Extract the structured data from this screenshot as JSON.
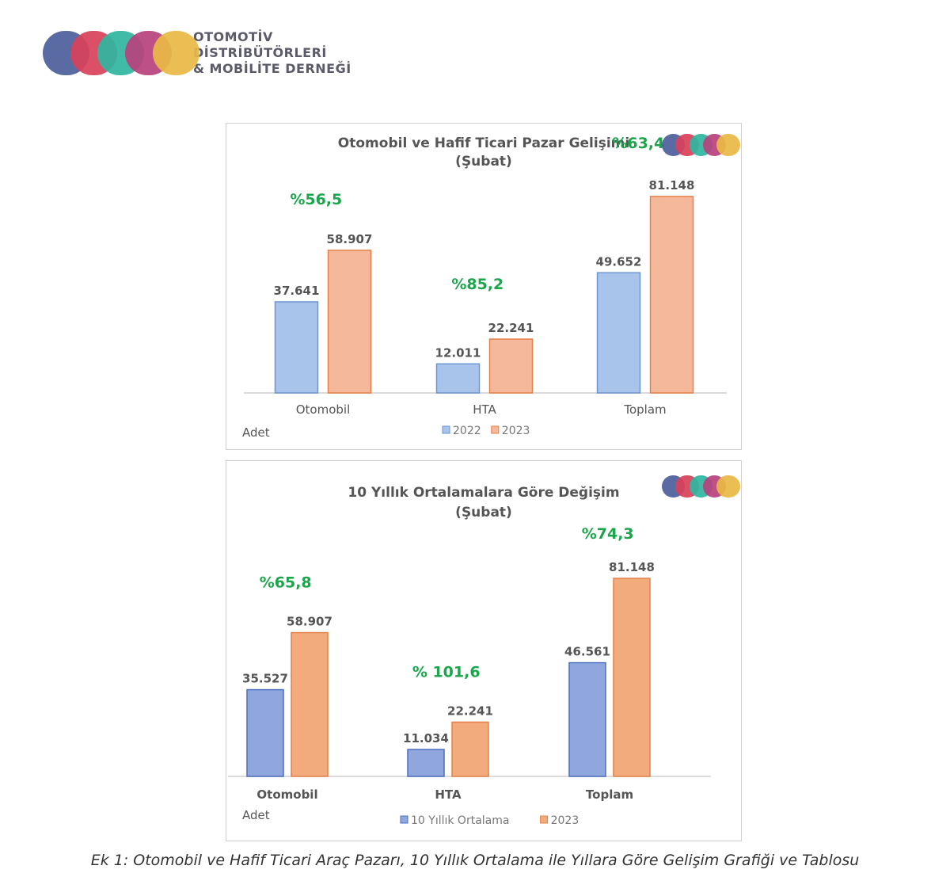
{
  "header": {
    "logo_letters": "ODMD",
    "org_name_lines": [
      "OTOMOTİV",
      "DİSTRİBÜTÖRLERİ",
      "& MOBİLİTE DERNEĞİ"
    ]
  },
  "colors": {
    "logo": [
      "#4c5e9c",
      "#d9415a",
      "#2fb5a1",
      "#b7417d",
      "#e9b845"
    ],
    "bar_2022": "#a8c4ea",
    "bar_2023_light": "#f5b89a",
    "bar_avg": "#8fa7dd",
    "bar_2023": "#f2ab7d",
    "bar_stroke_orange": "#e4804a",
    "bar_stroke_blue": "#4b6fbf",
    "pct_green": "#1aa64a"
  },
  "chart_data": [
    {
      "type": "bar",
      "title": "Otomobil ve Hafif Ticari Pazar Gelişimi",
      "subtitle": "(Şubat)",
      "unit_label": "Adet",
      "categories": [
        "Otomobil",
        "HTA",
        "Toplam"
      ],
      "series": [
        {
          "name": "2022",
          "values": [
            37641,
            12011,
            49652
          ],
          "labels": [
            "37.641",
            "12.011",
            "49.652"
          ]
        },
        {
          "name": "2023",
          "values": [
            58907,
            22241,
            81148
          ],
          "labels": [
            "58.907",
            "22.241",
            "81.148"
          ]
        }
      ],
      "changes": [
        "%56,5",
        "%85,2",
        "%63,4"
      ],
      "ylim": [
        0,
        81148
      ],
      "legend_position": "bottom",
      "grid": false
    },
    {
      "type": "bar",
      "title": "10 Yıllık Ortalamalara Göre Değişim",
      "subtitle": "(Şubat)",
      "unit_label": "Adet",
      "categories": [
        "Otomobil",
        "HTA",
        "Toplam"
      ],
      "series": [
        {
          "name": "10 Yıllık Ortalama",
          "values": [
            35527,
            11034,
            46561
          ],
          "labels": [
            "35.527",
            "11.034",
            "46.561"
          ]
        },
        {
          "name": "2023",
          "values": [
            58907,
            22241,
            81148
          ],
          "labels": [
            "58.907",
            "22.241",
            "81.148"
          ]
        }
      ],
      "changes": [
        "%65,8",
        "% 101,6",
        "%74,3"
      ],
      "ylim": [
        0,
        81148
      ],
      "legend_position": "bottom",
      "grid": false
    }
  ],
  "caption": "Ek 1: Otomobil ve Hafif Ticari Araç Pazarı, 10 Yıllık Ortalama ile Yıllara Göre Gelişim Grafiği ve Tablosu"
}
